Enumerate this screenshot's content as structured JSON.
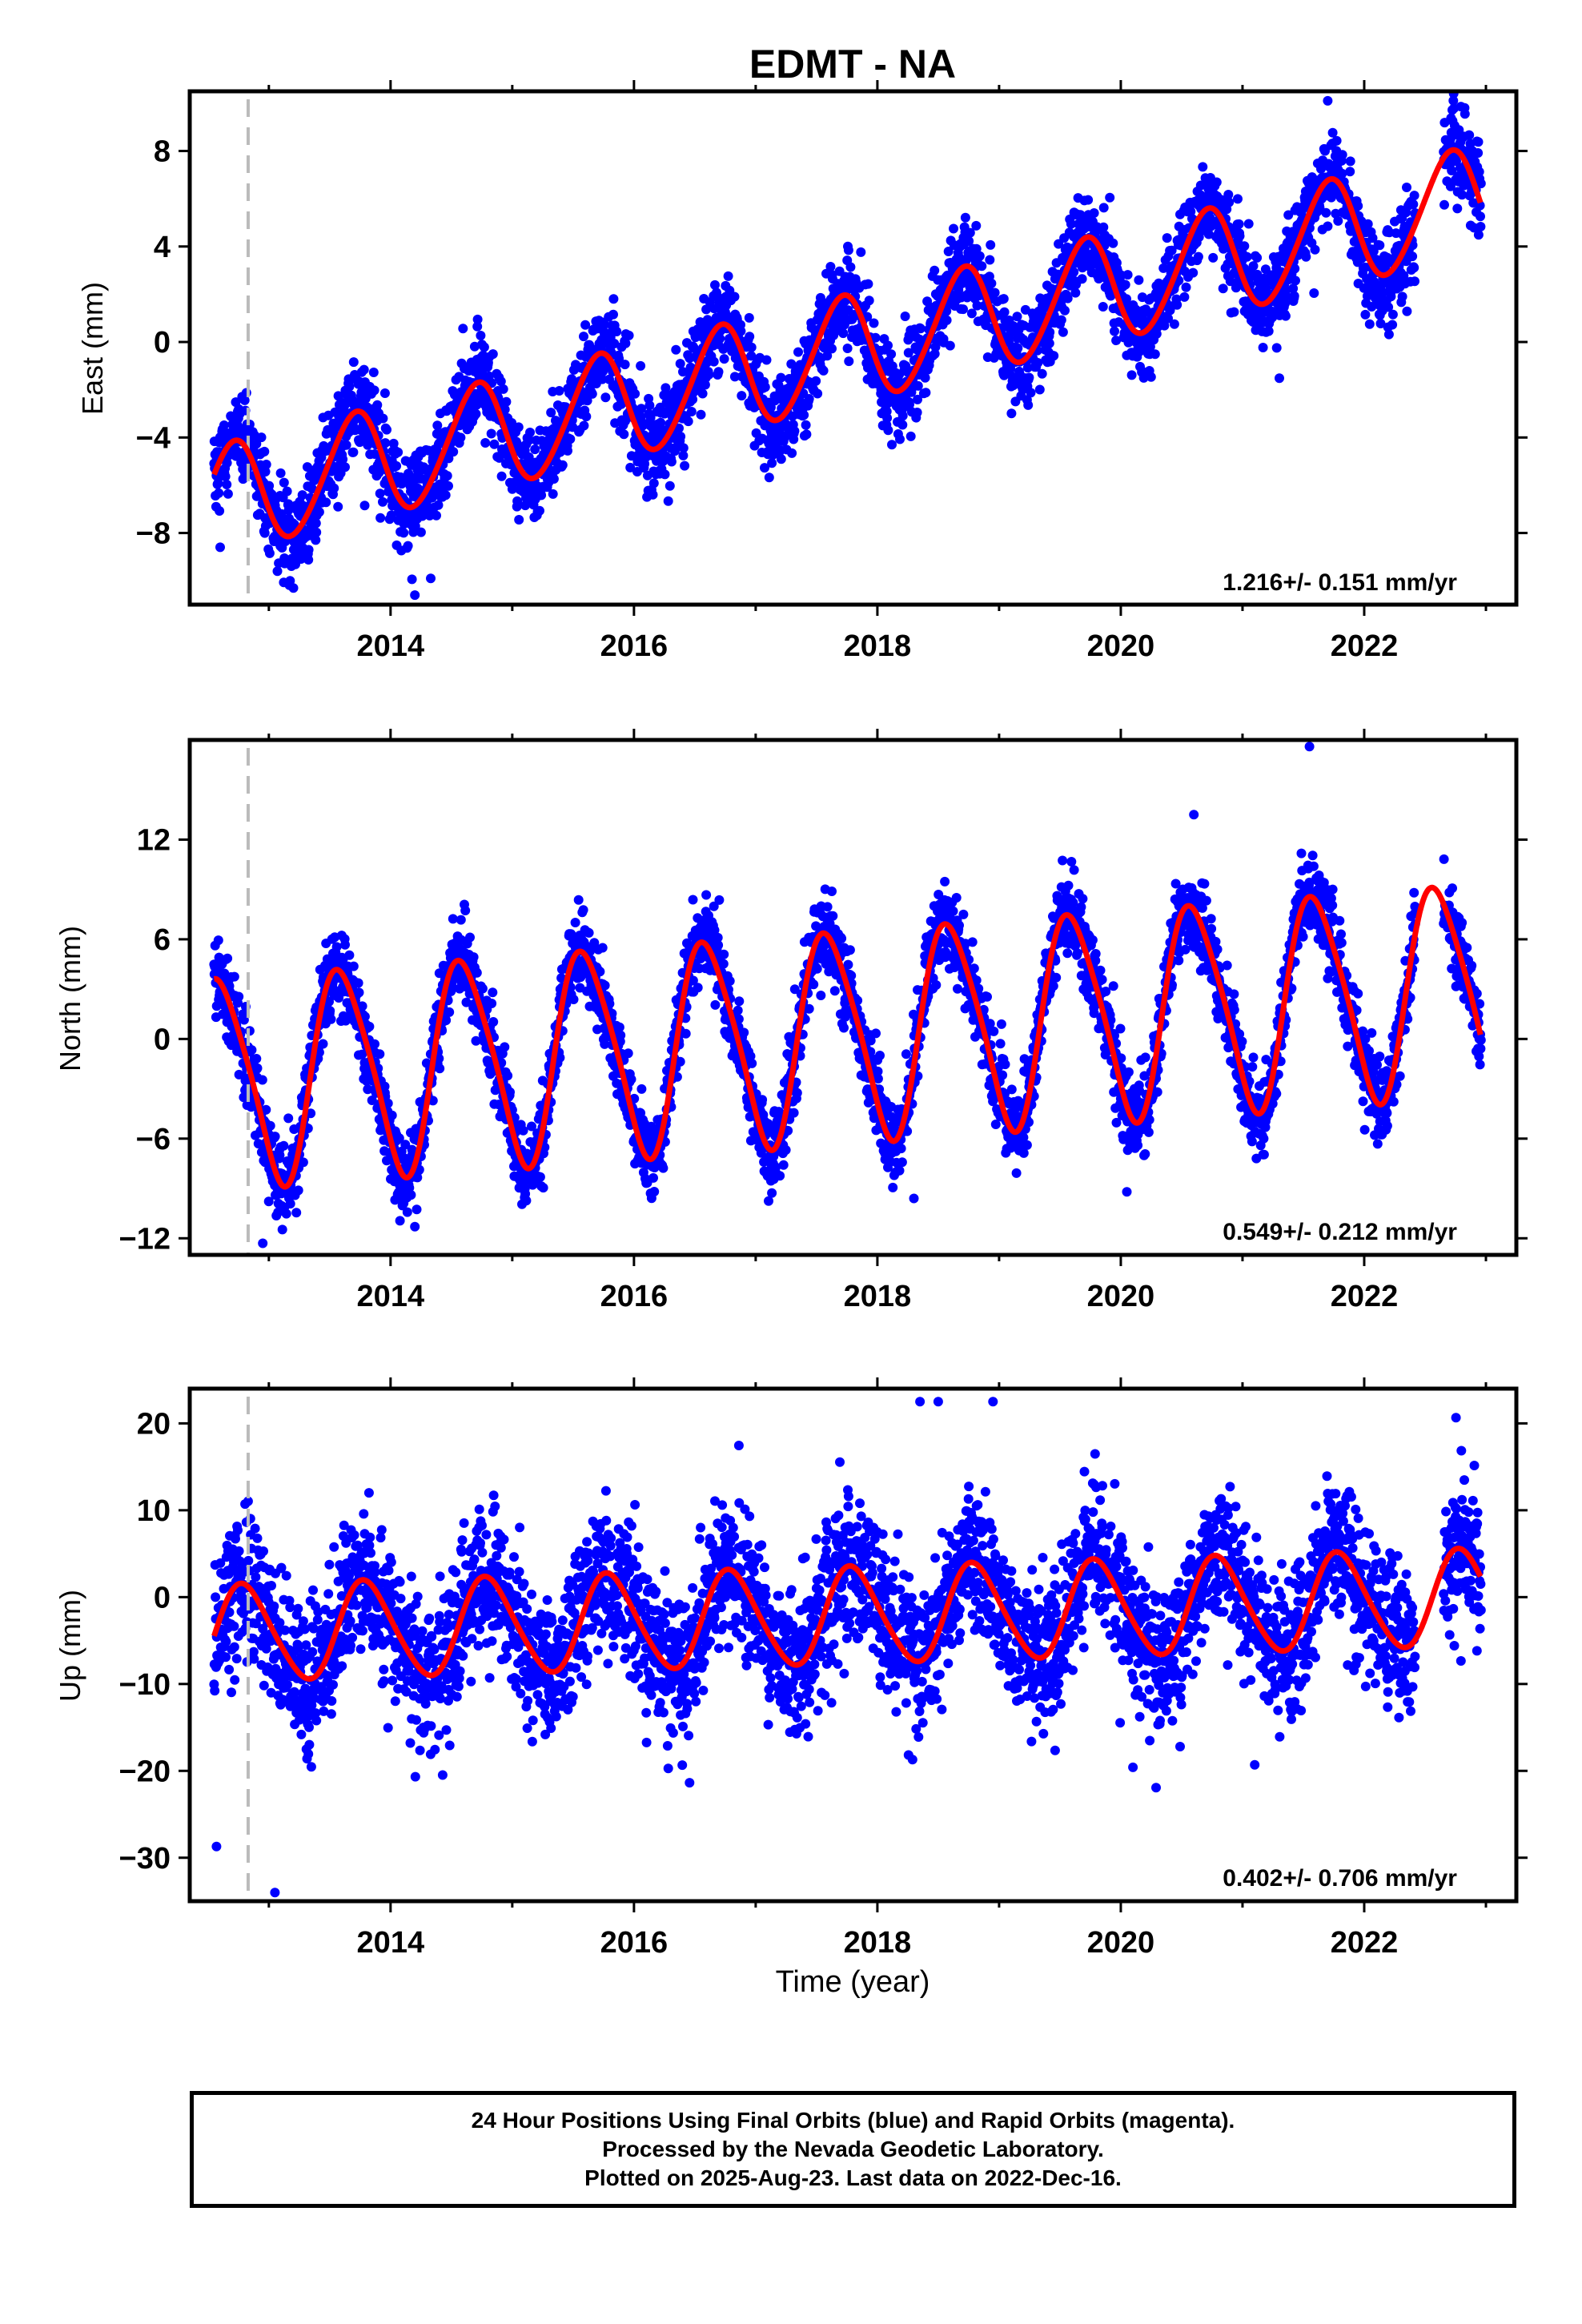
{
  "title": "EDMT - NA",
  "xlabel": "Time (year)",
  "footer": {
    "line1": "24 Hour Positions Using Final Orbits (blue) and Rapid Orbits (magenta).",
    "line2": "Processed by the Nevada Geodetic Laboratory.",
    "line3": "Plotted on 2025-Aug-23. Last data on 2022-Dec-16."
  },
  "colors": {
    "data": "#0000ff",
    "fit": "#ff0000",
    "event_line": "#bbbbbb",
    "axes": "#000000"
  },
  "chart_data": [
    {
      "type": "scatter",
      "component": "east",
      "ylabel": "East (mm)",
      "rate_label": "1.216+/- 0.151 mm/yr",
      "xlim": [
        2012.35,
        2023.25
      ],
      "ylim": [
        -11,
        10.5
      ],
      "x_ticks": [
        2014,
        2016,
        2018,
        2020,
        2022
      ],
      "x_tick_labels": [
        "2014",
        "2016",
        "2018",
        "2020",
        "2022"
      ],
      "y_ticks": [
        -8,
        -4,
        0,
        4,
        8
      ],
      "y_tick_labels": [
        "−8",
        "−4",
        "0",
        "4",
        "8"
      ],
      "event_x": 2012.83,
      "data_range": [
        2012.55,
        2022.96
      ],
      "gap": [
        2022.42,
        2022.65
      ],
      "fit_model": {
        "t0": 2017.75,
        "offset": -0.35,
        "rate": 1.216,
        "annual_amp": 2.25,
        "annual_peak": 0.7,
        "semi_amp": 0.2,
        "semi_peak": 0.3
      },
      "scatter_sd": 0.95,
      "outliers": [
        [
          2012.6,
          -8.6
        ],
        [
          2014.2,
          -10.6
        ],
        [
          2014.33,
          -9.9
        ],
        [
          2021.7,
          10.1
        ]
      ]
    },
    {
      "type": "scatter",
      "component": "north",
      "ylabel": "North (mm)",
      "rate_label": "0.549+/- 0.212 mm/yr",
      "xlim": [
        2012.35,
        2023.25
      ],
      "ylim": [
        -13,
        18
      ],
      "x_ticks": [
        2014,
        2016,
        2018,
        2020,
        2022
      ],
      "x_tick_labels": [
        "2014",
        "2016",
        "2018",
        "2020",
        "2022"
      ],
      "y_ticks": [
        -12,
        -6,
        0,
        6,
        12
      ],
      "y_tick_labels": [
        "−12",
        "−6",
        "0",
        "6",
        "12"
      ],
      "event_x": 2012.83,
      "data_range": [
        2012.55,
        2022.96
      ],
      "gap": [
        2022.42,
        2022.65
      ],
      "fit_model": {
        "t0": 2017.75,
        "offset": 0.3,
        "rate": 0.549,
        "annual_amp": 6.2,
        "annual_peak": 0.6,
        "semi_amp": 0.9,
        "semi_peak": 0.45
      },
      "scatter_sd": 1.2,
      "outliers": [
        [
          2012.95,
          -12.3
        ],
        [
          2014.2,
          -11.3
        ],
        [
          2018.3,
          -9.6
        ],
        [
          2020.05,
          -9.2
        ],
        [
          2021.55,
          17.6
        ],
        [
          2020.6,
          13.5
        ]
      ]
    },
    {
      "type": "scatter",
      "component": "up",
      "ylabel": "Up (mm)",
      "rate_label": "0.402+/- 0.706 mm/yr",
      "xlim": [
        2012.35,
        2023.25
      ],
      "ylim": [
        -35,
        24
      ],
      "x_ticks": [
        2014,
        2016,
        2018,
        2020,
        2022
      ],
      "x_tick_labels": [
        "2014",
        "2016",
        "2018",
        "2020",
        "2022"
      ],
      "y_ticks": [
        -30,
        -20,
        -10,
        0,
        10,
        20
      ],
      "y_tick_labels": [
        "−30",
        "−20",
        "−10",
        "0",
        "10",
        "20"
      ],
      "event_x": 2012.83,
      "data_range": [
        2012.55,
        2022.96
      ],
      "gap": [
        2022.42,
        2022.65
      ],
      "fit_model": {
        "t0": 2017.75,
        "offset": -2.2,
        "rate": 0.402,
        "annual_amp": 5.5,
        "annual_peak": 0.8,
        "semi_amp": 0.6,
        "semi_peak": 0.2
      },
      "scatter_sd": 4.2,
      "outliers": [
        [
          2012.57,
          -28.7
        ],
        [
          2013.05,
          -34.0
        ],
        [
          2018.35,
          22.5
        ],
        [
          2018.5,
          22.5
        ],
        [
          2018.95,
          22.5
        ],
        [
          2020.1,
          -19.6
        ],
        [
          2021.1,
          -19.3
        ]
      ]
    }
  ]
}
